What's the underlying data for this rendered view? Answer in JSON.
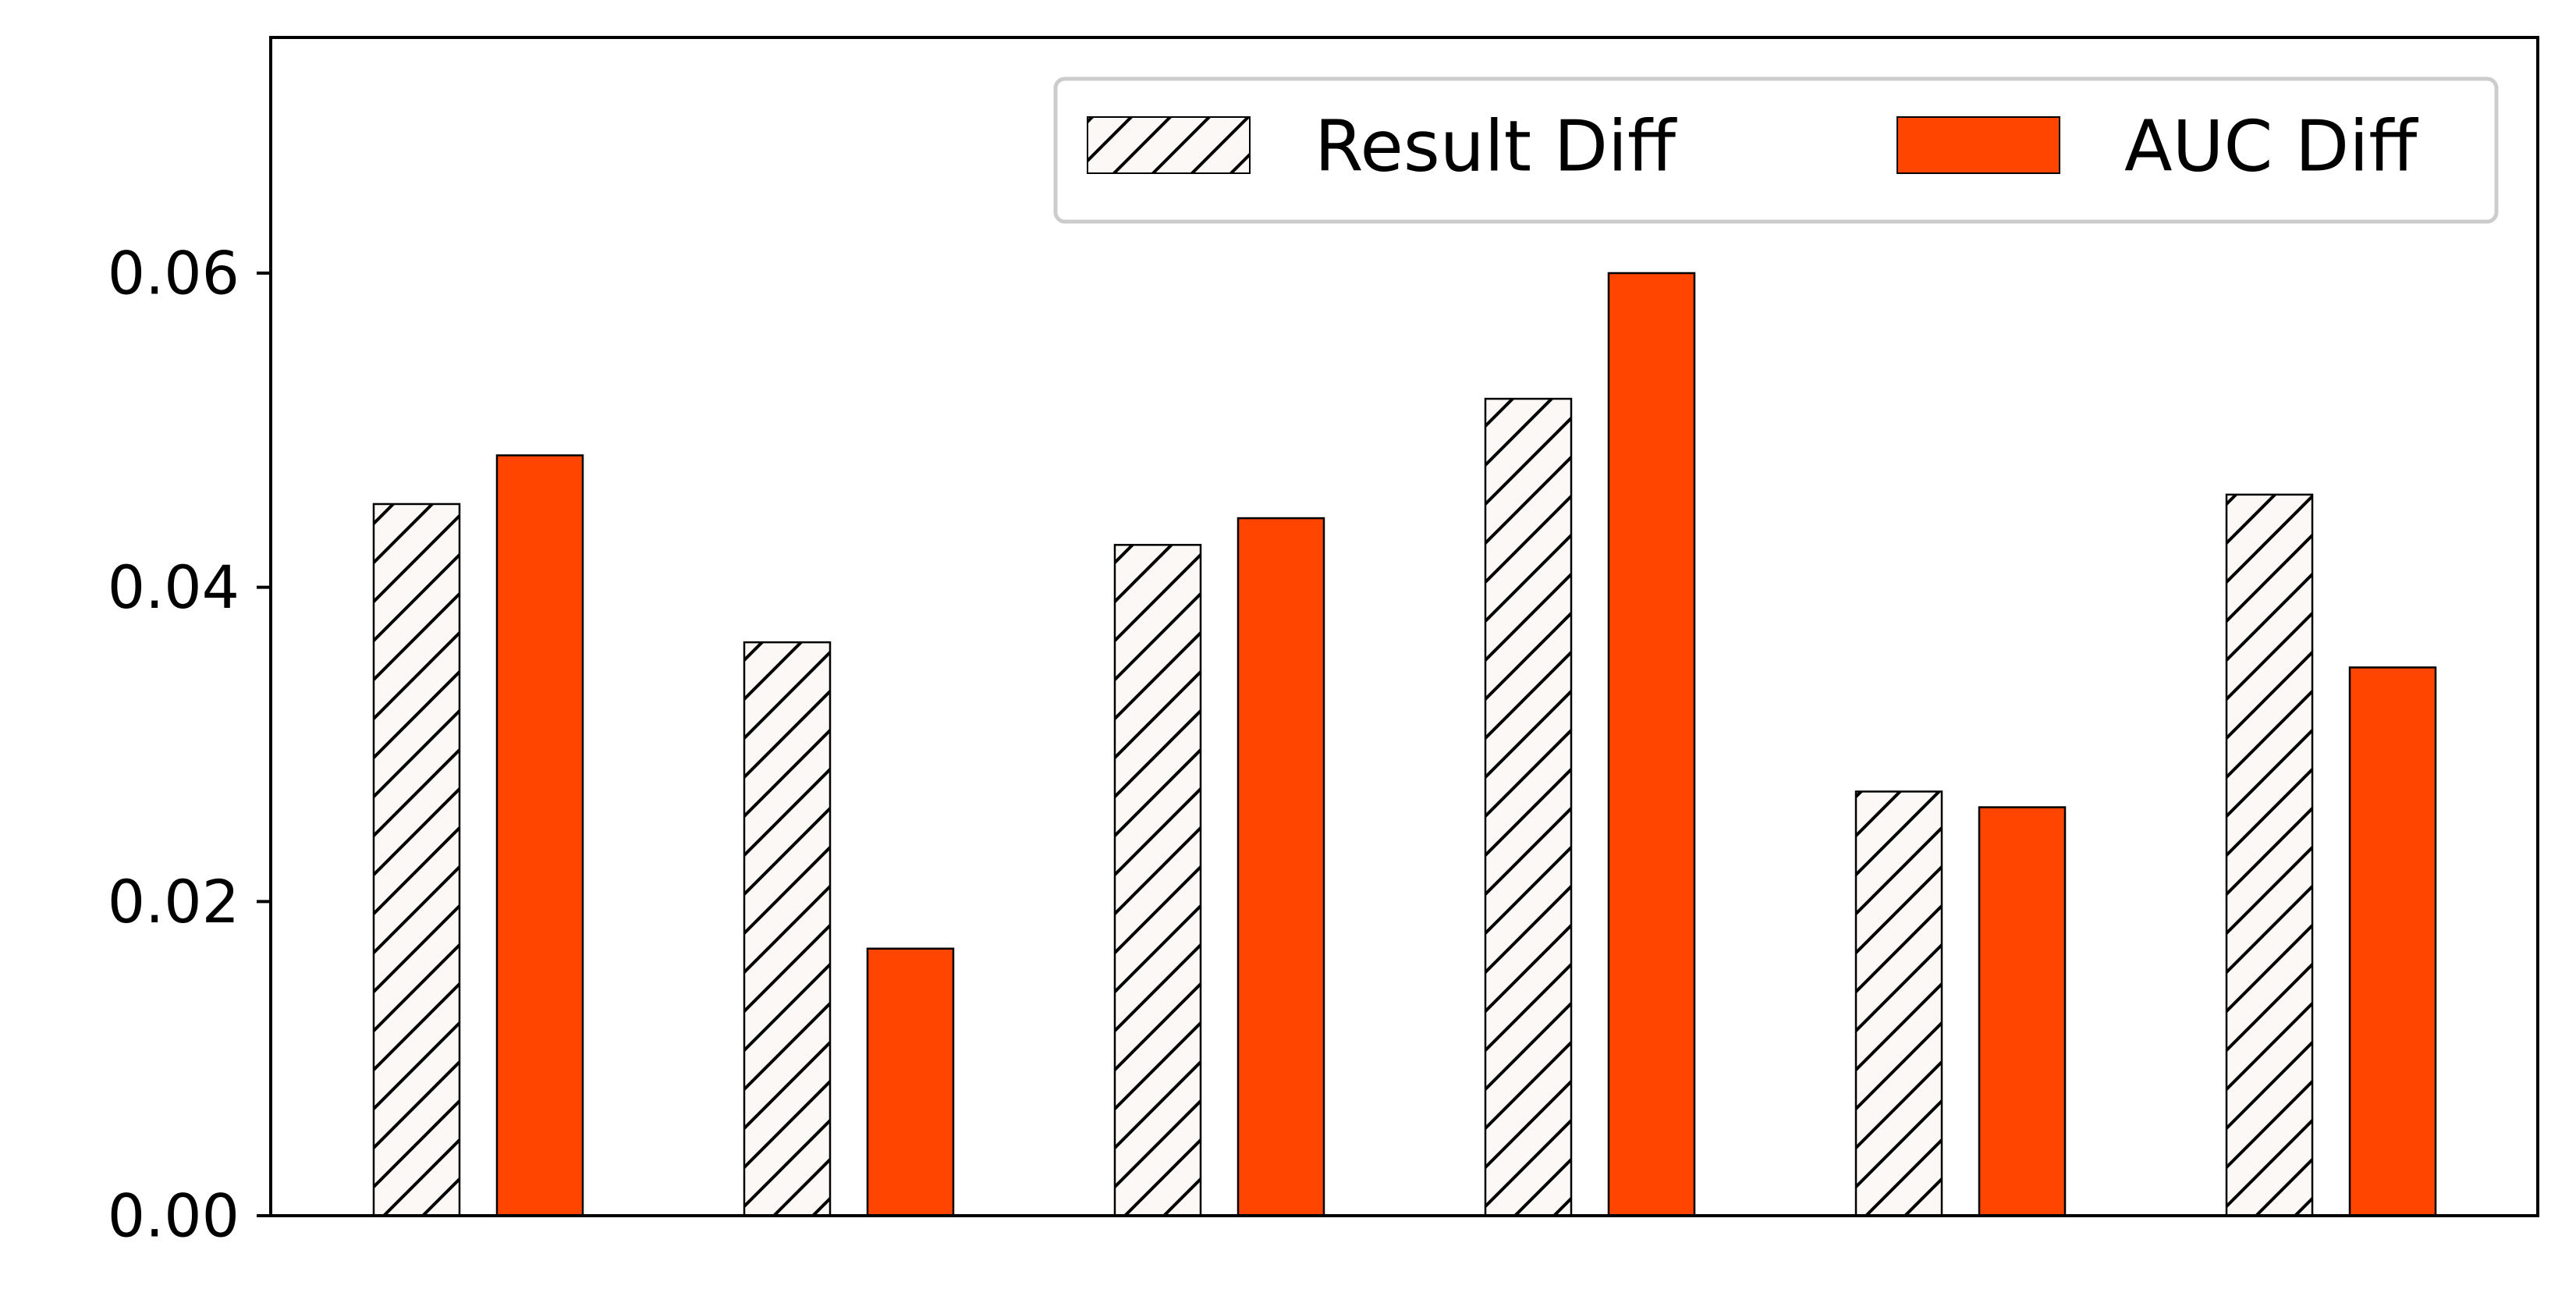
{
  "chart_data": {
    "type": "bar",
    "title": "",
    "xlabel": "",
    "ylabel": "",
    "categories": [
      "",
      "",
      "",
      "",
      "",
      ""
    ],
    "series": [
      {
        "name": "Result Diff",
        "values": [
          0.0453,
          0.0365,
          0.0427,
          0.052,
          0.027,
          0.0459
        ],
        "fill": "#fcf8f6",
        "pattern": "diagonal-hatch"
      },
      {
        "name": "AUC Diff",
        "values": [
          0.0484,
          0.017,
          0.0444,
          0.06,
          0.026,
          0.0349
        ],
        "fill": "#ff4500"
      }
    ],
    "ylim": [
      0,
      0.075
    ],
    "yticks": [
      "0.00",
      "0.02",
      "0.04",
      "0.06"
    ],
    "ytick_values": [
      0,
      0.02,
      0.04,
      0.06
    ],
    "grid": false,
    "legend": {
      "placement": "top-right",
      "columns": 2
    }
  },
  "colors": {
    "axis": "#000000",
    "bar_edge": "#000000",
    "legend_border": "#cccccc"
  }
}
